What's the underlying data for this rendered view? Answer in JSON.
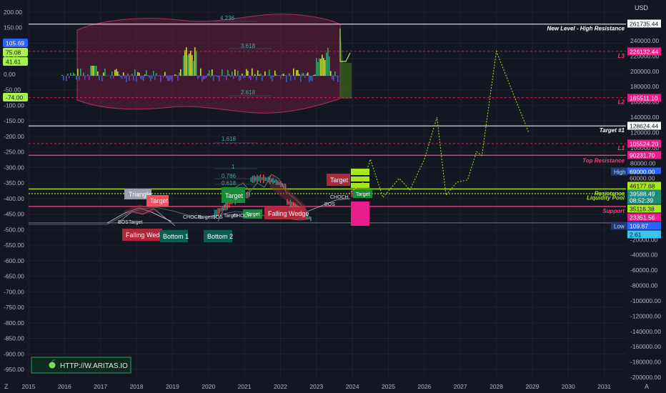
{
  "header": {
    "currency": "USD"
  },
  "branding": {
    "text": "HTTP://W.ARITAS.IO"
  },
  "footer": {
    "corner_left": "Z",
    "corner_right": "A"
  },
  "colors": {
    "background": "#131722",
    "grid": "#1e222d",
    "level_white": "#d1d4dc",
    "level_pink": "#f23f77",
    "level_red_dashed": "#e0245e",
    "level_lime": "#a8e61d",
    "projection": "#a8e61d",
    "oscillator_band": "#7a2040",
    "lime_badge": "#a8f052",
    "pink_badge": "#e91e8c",
    "blue_badge": "#2962ff",
    "cyan_badge": "#3bc3f2",
    "target_green": "#1b8a3a",
    "target_red": "#b2283b",
    "bottom_teal": "#0f5c52"
  },
  "chart_data": {
    "type": "line",
    "x_axis": {
      "labels": [
        "2015",
        "2016",
        "2017",
        "2018",
        "2019",
        "2020",
        "2021",
        "2022",
        "2023",
        "2024",
        "2025",
        "2026",
        "2027",
        "2028",
        "2029",
        "2030",
        "2031"
      ]
    },
    "left_axis": {
      "min": -950,
      "max": 200,
      "ticks": [
        "200.00",
        "150.00",
        "100.00",
        "50.00",
        "0.00",
        "-50.00",
        "-100.00",
        "-150.00",
        "-200.00",
        "-250.00",
        "-300.00",
        "-350.00",
        "-400.00",
        "-450.00",
        "-500.00",
        "-550.00",
        "-600.00",
        "-650.00",
        "-700.00",
        "-750.00",
        "-800.00",
        "-850.00",
        "-900.00",
        "-950.00"
      ]
    },
    "left_badges": [
      {
        "text": "105.69",
        "color": "#2962ff"
      },
      {
        "text": "75.08",
        "color": "#a8f052"
      },
      {
        "text": "41.61",
        "color": "#a8f052"
      },
      {
        "text": "-74.00",
        "color": "#a8f052"
      }
    ],
    "right_axis": {
      "min": -200000,
      "max": 260000,
      "ticks": [
        "240000.00",
        "220000.00",
        "200000.00",
        "180000.00",
        "160000.00",
        "140000.00",
        "120000.00",
        "100000.00",
        "80000.00",
        "60000.00",
        "40000.00",
        "20000.00",
        "0.00",
        "-20000.00",
        "-40000.00",
        "-60000.00",
        "-80000.00",
        "-100000.00",
        "-120000.00",
        "-140000.00",
        "-160000.00",
        "-180000.00",
        "-200000.00"
      ]
    },
    "right_badges": [
      {
        "text": "261735.44",
        "style": "white"
      },
      {
        "text": "226132.44",
        "style": "pink"
      },
      {
        "text": "165511.10",
        "style": "pink"
      },
      {
        "text": "128624.44",
        "style": "white"
      },
      {
        "text": "105524.20",
        "style": "pink"
      },
      {
        "text": "90231.70",
        "style": "pink"
      },
      {
        "text": "69000.00",
        "style": "blue",
        "label": "High"
      },
      {
        "text": "60000.00",
        "style": "plain"
      },
      {
        "text": "46177.68",
        "style": "lime"
      },
      {
        "text": "39588.49",
        "style": "teal"
      },
      {
        "text": "08:52:39",
        "style": "teal"
      },
      {
        "text": "35116.38",
        "style": "lime"
      },
      {
        "text": "23351.56",
        "style": "pink"
      },
      {
        "text": "109.87",
        "style": "blue",
        "label": "Low"
      },
      {
        "text": "2.61",
        "style": "cyan"
      }
    ],
    "levels": [
      {
        "name": "New Level - High Resistance",
        "value": 261735.44,
        "style": "white"
      },
      {
        "name": "L3",
        "value": 226132.44,
        "style": "dashed"
      },
      {
        "name": "L2",
        "value": 165511.1,
        "style": "dashed"
      },
      {
        "name": "Target #1",
        "value": 128624.44,
        "style": "white"
      },
      {
        "name": "L1",
        "value": 105524.2,
        "style": "dashed"
      },
      {
        "name": "Top Resistance",
        "value": 90231.7,
        "style": "pink"
      },
      {
        "name": "Resistance",
        "value": 46177.68,
        "style": "lime"
      },
      {
        "name": "Liquidity Pool",
        "value": 39588.49,
        "style": "thin"
      },
      {
        "name": "Support",
        "value": 23351.56,
        "style": "pink"
      }
    ],
    "oscillator_levels": [
      "4.236",
      "3.618",
      "2.618"
    ],
    "fib_levels": [
      "1.618",
      "1",
      "0.786",
      "0.618"
    ],
    "annotations": {
      "triangle": "Triangle",
      "falling_wedge_1": "Falling Wedge",
      "falling_wedge_2": "Falling Wedge",
      "bottom_1": "Bottom 1",
      "bottom_2": "Bottom 2",
      "target": "Target",
      "choch": "CHOCH",
      "bos": "BOS"
    },
    "projection_path": [
      [
        2023.9,
        40000
      ],
      [
        2024.3,
        55000
      ],
      [
        2024.5,
        85000
      ],
      [
        2024.85,
        35000
      ],
      [
        2025.3,
        60000
      ],
      [
        2025.6,
        45000
      ],
      [
        2026.0,
        85000
      ],
      [
        2026.35,
        140000
      ],
      [
        2026.6,
        38000
      ],
      [
        2026.9,
        55000
      ],
      [
        2027.2,
        58000
      ],
      [
        2027.45,
        95000
      ],
      [
        2027.6,
        90000
      ],
      [
        2028.0,
        226132
      ],
      [
        2028.9,
        120000
      ]
    ]
  }
}
